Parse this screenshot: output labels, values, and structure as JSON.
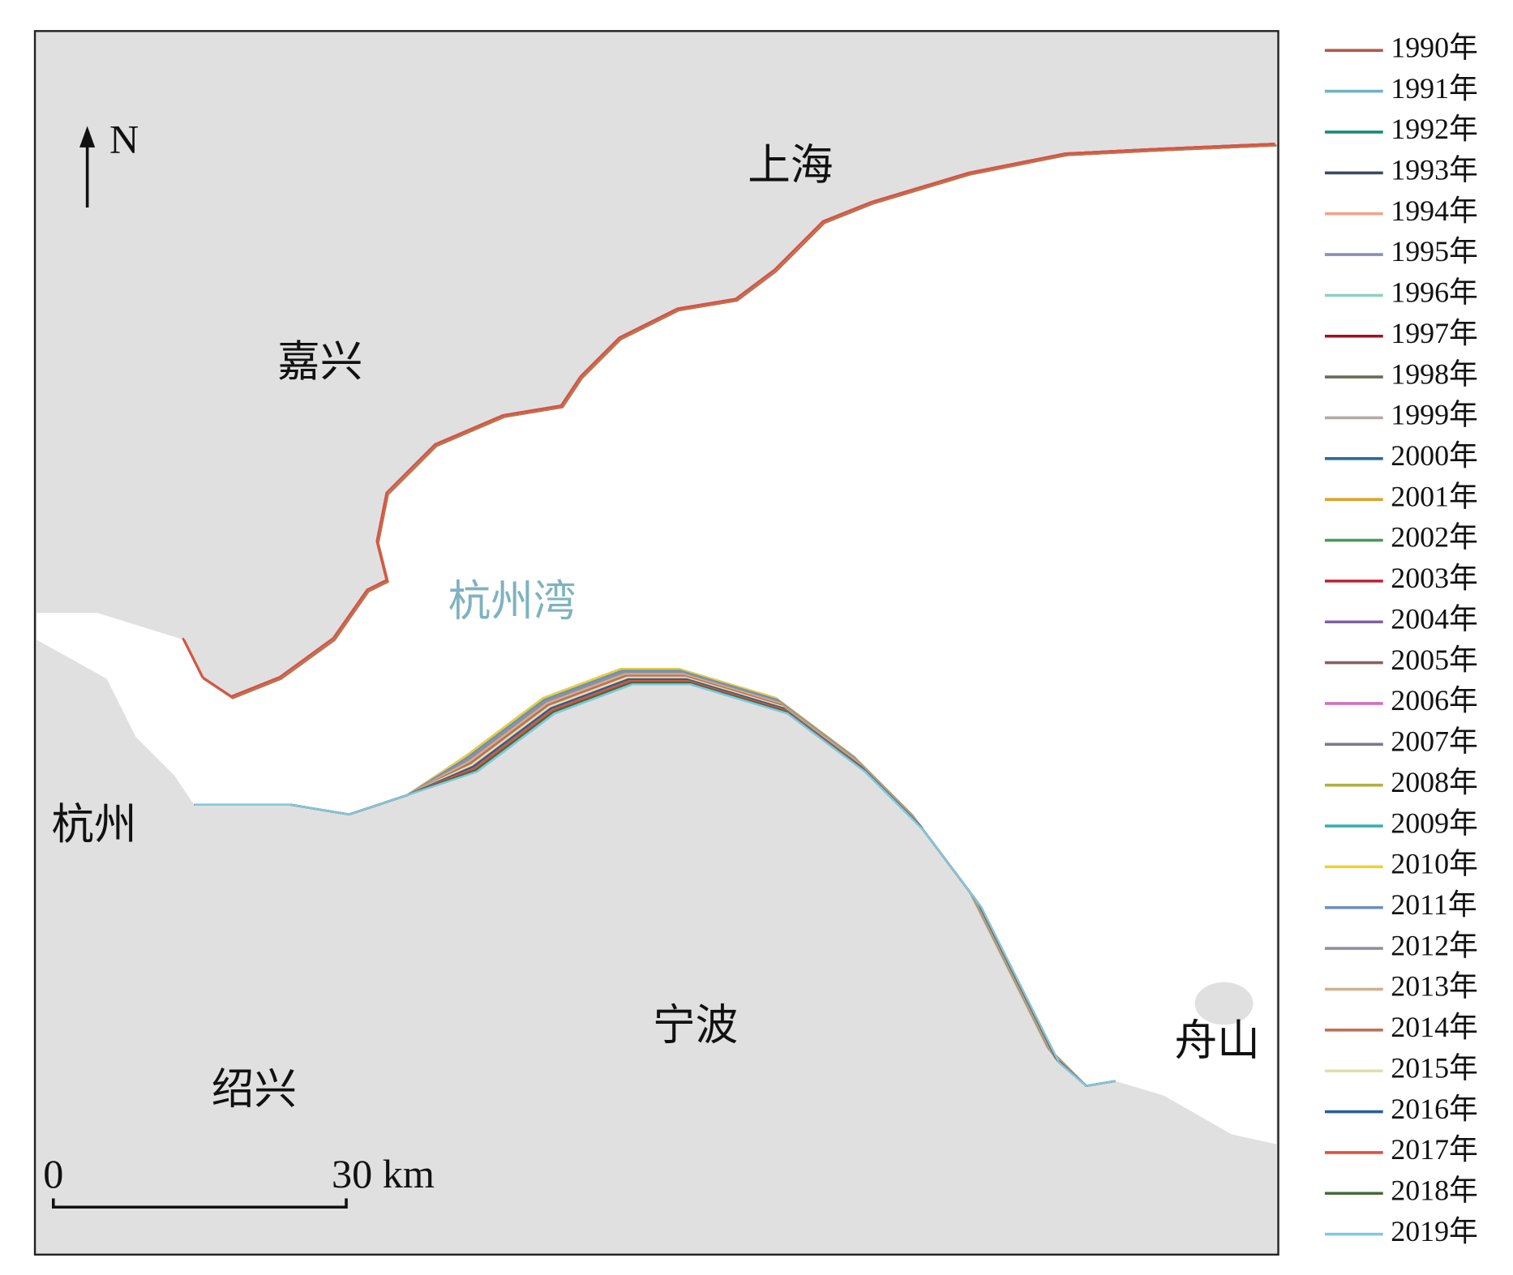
{
  "map": {
    "places": {
      "shanghai": "上海",
      "jiaxing": "嘉兴",
      "bay": "杭州湾",
      "hangzhou": "杭州",
      "ningbo": "宁波",
      "shaoxing": "绍兴",
      "zhoushan": "舟山"
    },
    "north": "N",
    "scale_bar": {
      "start": "0",
      "end": "30 km"
    },
    "legend": [
      {
        "label": "1990年",
        "color": "#b5594b"
      },
      {
        "label": "1991年",
        "color": "#6fb3c9"
      },
      {
        "label": "1992年",
        "color": "#1a8a7a"
      },
      {
        "label": "1993年",
        "color": "#3b4a6b"
      },
      {
        "label": "1994年",
        "color": "#f0a58a"
      },
      {
        "label": "1995年",
        "color": "#8a8fb5"
      },
      {
        "label": "1996年",
        "color": "#8fd0c0"
      },
      {
        "label": "1997年",
        "color": "#a01020"
      },
      {
        "label": "1998年",
        "color": "#6b6b5a"
      },
      {
        "label": "1999年",
        "color": "#b5aaa8"
      },
      {
        "label": "2000年",
        "color": "#2a6a9a"
      },
      {
        "label": "2001年",
        "color": "#e0a030"
      },
      {
        "label": "2002年",
        "color": "#4a9a5a"
      },
      {
        "label": "2003年",
        "color": "#c02030"
      },
      {
        "label": "2004年",
        "color": "#8060a0"
      },
      {
        "label": "2005年",
        "color": "#8a6060"
      },
      {
        "label": "2006年",
        "color": "#d070c0"
      },
      {
        "label": "2007年",
        "color": "#7a7a8a"
      },
      {
        "label": "2008年",
        "color": "#b0b040"
      },
      {
        "label": "2009年",
        "color": "#3ab0b0"
      },
      {
        "label": "2010年",
        "color": "#f0d030"
      },
      {
        "label": "2011年",
        "color": "#6a90c0"
      },
      {
        "label": "2012年",
        "color": "#9090a0"
      },
      {
        "label": "2013年",
        "color": "#d0b090"
      },
      {
        "label": "2014年",
        "color": "#c07050"
      },
      {
        "label": "2015年",
        "color": "#e0e0b0"
      },
      {
        "label": "2016年",
        "color": "#2a6090"
      },
      {
        "label": "2017年",
        "color": "#e05040"
      },
      {
        "label": "2018年",
        "color": "#4a6a3a"
      },
      {
        "label": "2019年",
        "color": "#80c8e0"
      }
    ]
  }
}
